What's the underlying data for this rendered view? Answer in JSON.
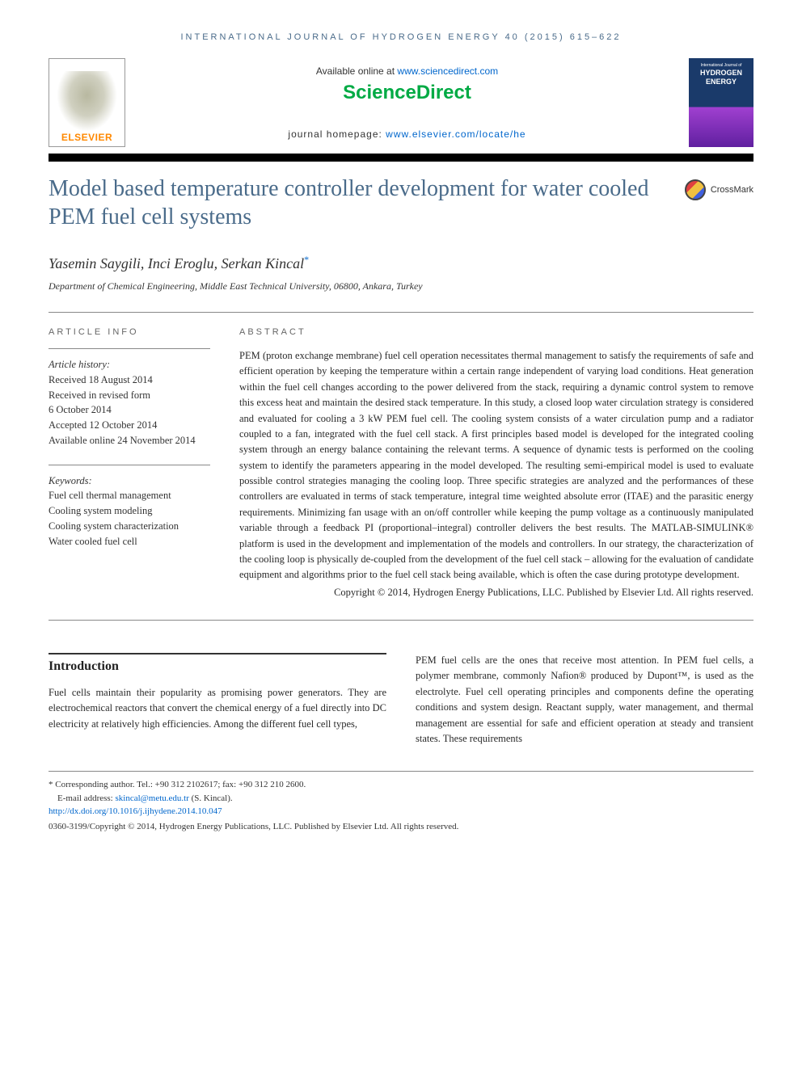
{
  "journal_ref": "INTERNATIONAL JOURNAL OF HYDROGEN ENERGY 40 (2015) 615–622",
  "header": {
    "elsevier": "ELSEVIER",
    "available_prefix": "Available online at ",
    "available_url": "www.sciencedirect.com",
    "sciencedirect": "ScienceDirect",
    "homepage_prefix": "journal homepage: ",
    "homepage_url": "www.elsevier.com/locate/he",
    "cover_journal": "International Journal of",
    "cover_title1": "HYDROGEN",
    "cover_title2": "ENERGY"
  },
  "title": "Model based temperature controller development for water cooled PEM fuel cell systems",
  "crossmark": "CrossMark",
  "authors": "Yasemin Saygili, Inci Eroglu, Serkan Kincal",
  "corr_mark": "*",
  "affiliation": "Department of Chemical Engineering, Middle East Technical University, 06800, Ankara, Turkey",
  "article_info": {
    "heading": "ARTICLE INFO",
    "history_label": "Article history:",
    "received": "Received 18 August 2014",
    "revised1": "Received in revised form",
    "revised2": "6 October 2014",
    "accepted": "Accepted 12 October 2014",
    "online": "Available online 24 November 2014",
    "keywords_label": "Keywords:",
    "kw1": "Fuel cell thermal management",
    "kw2": "Cooling system modeling",
    "kw3": "Cooling system characterization",
    "kw4": "Water cooled fuel cell"
  },
  "abstract": {
    "heading": "ABSTRACT",
    "text": "PEM (proton exchange membrane) fuel cell operation necessitates thermal management to satisfy the requirements of safe and efficient operation by keeping the temperature within a certain range independent of varying load conditions. Heat generation within the fuel cell changes according to the power delivered from the stack, requiring a dynamic control system to remove this excess heat and maintain the desired stack temperature. In this study, a closed loop water circulation strategy is considered and evaluated for cooling a 3 kW PEM fuel cell. The cooling system consists of a water circulation pump and a radiator coupled to a fan, integrated with the fuel cell stack. A first principles based model is developed for the integrated cooling system through an energy balance containing the relevant terms. A sequence of dynamic tests is performed on the cooling system to identify the parameters appearing in the model developed. The resulting semi-empirical model is used to evaluate possible control strategies managing the cooling loop. Three specific strategies are analyzed and the performances of these controllers are evaluated in terms of stack temperature, integral time weighted absolute error (ITAE) and the parasitic energy requirements. Minimizing fan usage with an on/off controller while keeping the pump voltage as a continuously manipulated variable through a feedback PI (proportional–integral) controller delivers the best results. The MATLAB-SIMULINK® platform is used in the development and implementation of the models and controllers. In our strategy, the characterization of the cooling loop is physically de-coupled from the development of the fuel cell stack – allowing for the evaluation of candidate equipment and algorithms prior to the fuel cell stack being available, which is often the case during prototype development.",
    "copyright": "Copyright © 2014, Hydrogen Energy Publications, LLC. Published by Elsevier Ltd. All rights reserved."
  },
  "intro": {
    "heading": "Introduction",
    "col1": "Fuel cells maintain their popularity as promising power generators. They are electrochemical reactors that convert the chemical energy of a fuel directly into DC electricity at relatively high efficiencies. Among the different fuel cell types,",
    "col2": "PEM fuel cells are the ones that receive most attention. In PEM fuel cells, a polymer membrane, commonly Nafion® produced by Dupont™, is used as the electrolyte. Fuel cell operating principles and components define the operating conditions and system design. Reactant supply, water management, and thermal management are essential for safe and efficient operation at steady and transient states. These requirements"
  },
  "footnotes": {
    "corr": "* Corresponding author. Tel.: +90 312 2102617; fax: +90 312 210 2600.",
    "email_label": "E-mail address: ",
    "email": "skincal@metu.edu.tr",
    "email_suffix": " (S. Kincal).",
    "doi": "http://dx.doi.org/10.1016/j.ijhydene.2014.10.047",
    "bottom_copyright": "0360-3199/Copyright © 2014, Hydrogen Energy Publications, LLC. Published by Elsevier Ltd. All rights reserved."
  },
  "colors": {
    "link": "#0066cc",
    "title": "#4a6b8a",
    "sd_green": "#00aa44",
    "elsevier_orange": "#ff8800"
  }
}
